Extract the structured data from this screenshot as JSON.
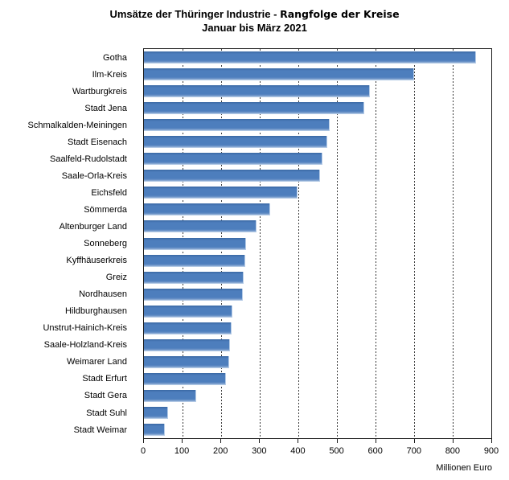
{
  "title": {
    "line1_part1": "Umsätze der Thüringer Industrie - ",
    "line1_part2": "Rangfolge der Kreise",
    "line2": "Januar bis März 2021"
  },
  "axis": {
    "unit_label": "Millionen Euro"
  },
  "chart_data": {
    "type": "bar",
    "orientation": "horizontal",
    "title": "Umsätze der Thüringer Industrie - Rangfolge der Kreise",
    "subtitle": "Januar bis März 2021",
    "xlabel": "Millionen Euro",
    "ylabel": "",
    "xlim": [
      0,
      900
    ],
    "x_ticks": [
      0,
      100,
      200,
      300,
      400,
      500,
      600,
      700,
      800,
      900
    ],
    "grid": "vertical-dashed",
    "legend": "none",
    "bar_color": "#4d7ebd",
    "categories": [
      "Gotha",
      "Ilm-Kreis",
      "Wartburgkreis",
      "Stadt Jena",
      "Schmalkalden-Meiningen",
      "Stadt Eisenach",
      "Saalfeld-Rudolstadt",
      "Saale-Orla-Kreis",
      "Eichsfeld",
      "Sömmerda",
      "Altenburger Land",
      "Sonneberg",
      "Kyffhäuserkreis",
      "Greiz",
      "Nordhausen",
      "Hildburghausen",
      "Unstrut-Hainich-Kreis",
      "Saale-Holzland-Kreis",
      "Weimarer Land",
      "Stadt Erfurt",
      "Stadt Gera",
      "Stadt Suhl",
      "Stadt Weimar"
    ],
    "values": [
      860,
      701,
      585,
      571,
      481,
      475,
      462,
      456,
      397,
      328,
      291,
      264,
      262,
      259,
      256,
      230,
      227,
      223,
      221,
      213,
      136,
      62,
      54
    ]
  }
}
